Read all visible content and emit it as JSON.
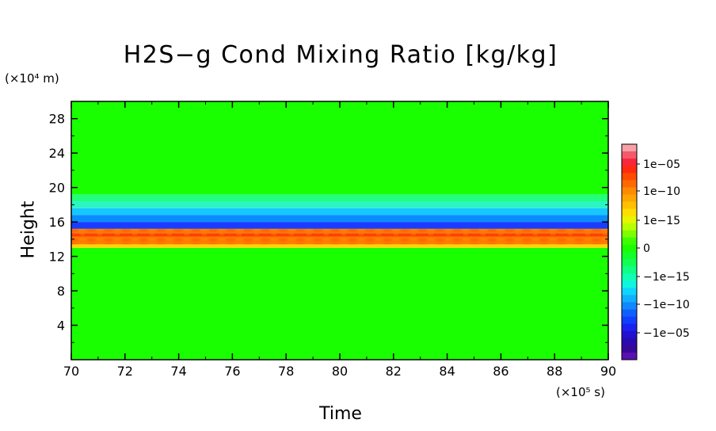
{
  "chart_data": {
    "type": "heatmap",
    "title": "H2S−g Cond Mixing Ratio [kg/kg]",
    "xlabel": "Time",
    "ylabel": "Height",
    "x_unit": "(×10⁵ s)",
    "y_unit": "(×10⁴ m)",
    "xlim": [
      70,
      90
    ],
    "ylim": [
      0,
      30
    ],
    "x_ticks": [
      "70",
      "72",
      "74",
      "76",
      "78",
      "80",
      "82",
      "84",
      "86",
      "88",
      "90"
    ],
    "y_ticks": [
      "4",
      "8",
      "12",
      "16",
      "20",
      "24",
      "28"
    ],
    "x_tick_values": [
      70,
      72,
      74,
      76,
      78,
      80,
      82,
      84,
      86,
      88,
      90
    ],
    "y_tick_values": [
      4,
      8,
      12,
      16,
      20,
      24,
      28
    ],
    "bands": [
      {
        "y_from": 0,
        "y_to": 13.0,
        "level": "0",
        "color": "#1aff00"
      },
      {
        "y_from": 13.0,
        "y_to": 13.4,
        "level": "1e-15",
        "color": "#ffd500"
      },
      {
        "y_from": 13.4,
        "y_to": 14.3,
        "level": "1e-10",
        "color": "#ff7a00"
      },
      {
        "y_from": 14.3,
        "y_to": 14.7,
        "level": "1e-05",
        "color": "#ff3b00"
      },
      {
        "y_from": 14.7,
        "y_to": 15.2,
        "level": "1e-10",
        "color": "#ff7a00"
      },
      {
        "y_from": 15.2,
        "y_to": 16.0,
        "level": "-1e-05",
        "color": "#1a3cff"
      },
      {
        "y_from": 16.0,
        "y_to": 16.8,
        "level": "-1e-10",
        "color": "#0a8cff"
      },
      {
        "y_from": 16.8,
        "y_to": 17.6,
        "level": "-1e-10",
        "color": "#15c8ff"
      },
      {
        "y_from": 17.6,
        "y_to": 18.4,
        "level": "-1e-15",
        "color": "#2af5c5"
      },
      {
        "y_from": 18.4,
        "y_to": 19.2,
        "level": "-1e-15",
        "color": "#22ff7a"
      },
      {
        "y_from": 19.2,
        "y_to": 30,
        "level": "0",
        "color": "#1aff00"
      }
    ],
    "colorbar": {
      "labels": [
        "1e−05",
        "1e−10",
        "1e−15",
        "0",
        "−1e−15",
        "−1e−10",
        "−1e−05"
      ],
      "colors_top_to_bottom": [
        "#f7a0a6",
        "#f45a6a",
        "#f8283a",
        "#ff2a10",
        "#ff4a00",
        "#ff6a00",
        "#ff8a00",
        "#ffa500",
        "#ffc000",
        "#ffdd00",
        "#e6f500",
        "#b8ff00",
        "#7dff00",
        "#3cff00",
        "#1aff00",
        "#12ff2a",
        "#10ff55",
        "#10ff85",
        "#10ffb5",
        "#10f5e0",
        "#10d5ff",
        "#10b0ff",
        "#1088ff",
        "#1060ff",
        "#1040ff",
        "#1a22f0",
        "#2010d0",
        "#2a0ab0",
        "#36089a",
        "#5a10b0"
      ]
    }
  }
}
